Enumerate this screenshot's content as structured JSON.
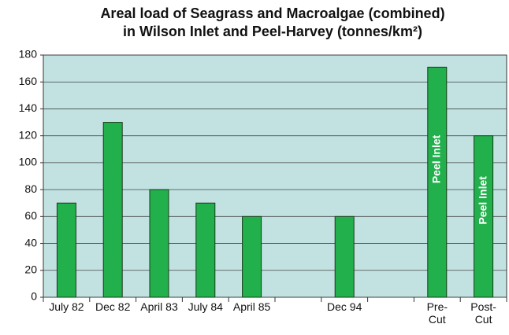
{
  "chart_data": {
    "type": "bar",
    "title": [
      "Areal load of Seagrass and Macroalgae (combined)",
      "in Wilson Inlet and Peel-Harvey (tonnes/km²)"
    ],
    "categories": [
      "July 82",
      "Dec 82",
      "April 83",
      "July 84",
      "April 85",
      null,
      "Dec 94",
      null,
      "Pre-Cut",
      "Post-Cut"
    ],
    "values": [
      70,
      130,
      80,
      70,
      60,
      null,
      60,
      null,
      171,
      120
    ],
    "color": "#21b04b",
    "ylim": [
      0,
      180
    ],
    "yticks": [
      0,
      20,
      40,
      60,
      80,
      100,
      120,
      140,
      160,
      180
    ],
    "grid": true,
    "annotations": [
      {
        "text": "Peel Inlet",
        "category": "Pre-Cut"
      },
      {
        "text": "Peel Inlet",
        "category": "Post-Cut"
      }
    ]
  }
}
